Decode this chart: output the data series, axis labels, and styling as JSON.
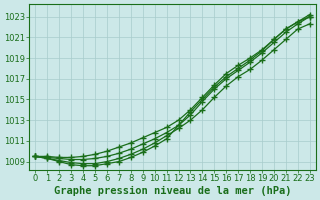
{
  "title": "Graphe pression niveau de la mer (hPa)",
  "x_values": [
    0,
    1,
    2,
    3,
    4,
    5,
    6,
    7,
    8,
    9,
    10,
    11,
    12,
    13,
    14,
    15,
    16,
    17,
    18,
    19,
    20,
    21,
    22,
    23
  ],
  "line1": [
    1009.5,
    1009.3,
    1009.1,
    1008.9,
    1008.8,
    1008.8,
    1009.0,
    1009.3,
    1009.7,
    1010.2,
    1010.8,
    1011.5,
    1012.2,
    1013.0,
    1014.0,
    1015.2,
    1016.3,
    1017.2,
    1017.9,
    1018.8,
    1019.8,
    1020.8,
    1021.8,
    1022.3
  ],
  "line2": [
    1009.5,
    1009.3,
    1009.0,
    1008.7,
    1008.6,
    1008.6,
    1008.8,
    1009.0,
    1009.4,
    1009.9,
    1010.5,
    1011.2,
    1012.5,
    1013.8,
    1015.0,
    1016.2,
    1017.2,
    1018.0,
    1018.8,
    1019.7,
    1020.8,
    1021.8,
    1022.5,
    1023.0
  ],
  "line3": [
    1009.5,
    1009.4,
    1009.3,
    1009.2,
    1009.2,
    1009.3,
    1009.5,
    1009.8,
    1010.2,
    1010.7,
    1011.2,
    1011.8,
    1012.5,
    1013.5,
    1014.8,
    1016.0,
    1017.0,
    1017.8,
    1018.6,
    1019.5,
    1020.5,
    1021.5,
    1022.3,
    1023.0
  ],
  "line4": [
    1009.5,
    1009.5,
    1009.4,
    1009.4,
    1009.5,
    1009.7,
    1010.0,
    1010.4,
    1010.8,
    1011.3,
    1011.8,
    1012.3,
    1013.0,
    1014.0,
    1015.2,
    1016.4,
    1017.5,
    1018.3,
    1019.0,
    1019.8,
    1020.8,
    1021.8,
    1022.5,
    1023.2
  ],
  "line_color": "#1a6e1a",
  "bg_color": "#cce8e8",
  "grid_color": "#a8cccc",
  "ylim": [
    1008.2,
    1024.2
  ],
  "yticks": [
    1009,
    1011,
    1013,
    1015,
    1017,
    1019,
    1021,
    1023
  ],
  "xticks": [
    0,
    1,
    2,
    3,
    4,
    5,
    6,
    7,
    8,
    9,
    10,
    11,
    12,
    13,
    14,
    15,
    16,
    17,
    18,
    19,
    20,
    21,
    22,
    23
  ],
  "title_fontsize": 7.5,
  "tick_fontsize": 6,
  "marker": "+",
  "marker_size": 4,
  "line_width": 0.9
}
